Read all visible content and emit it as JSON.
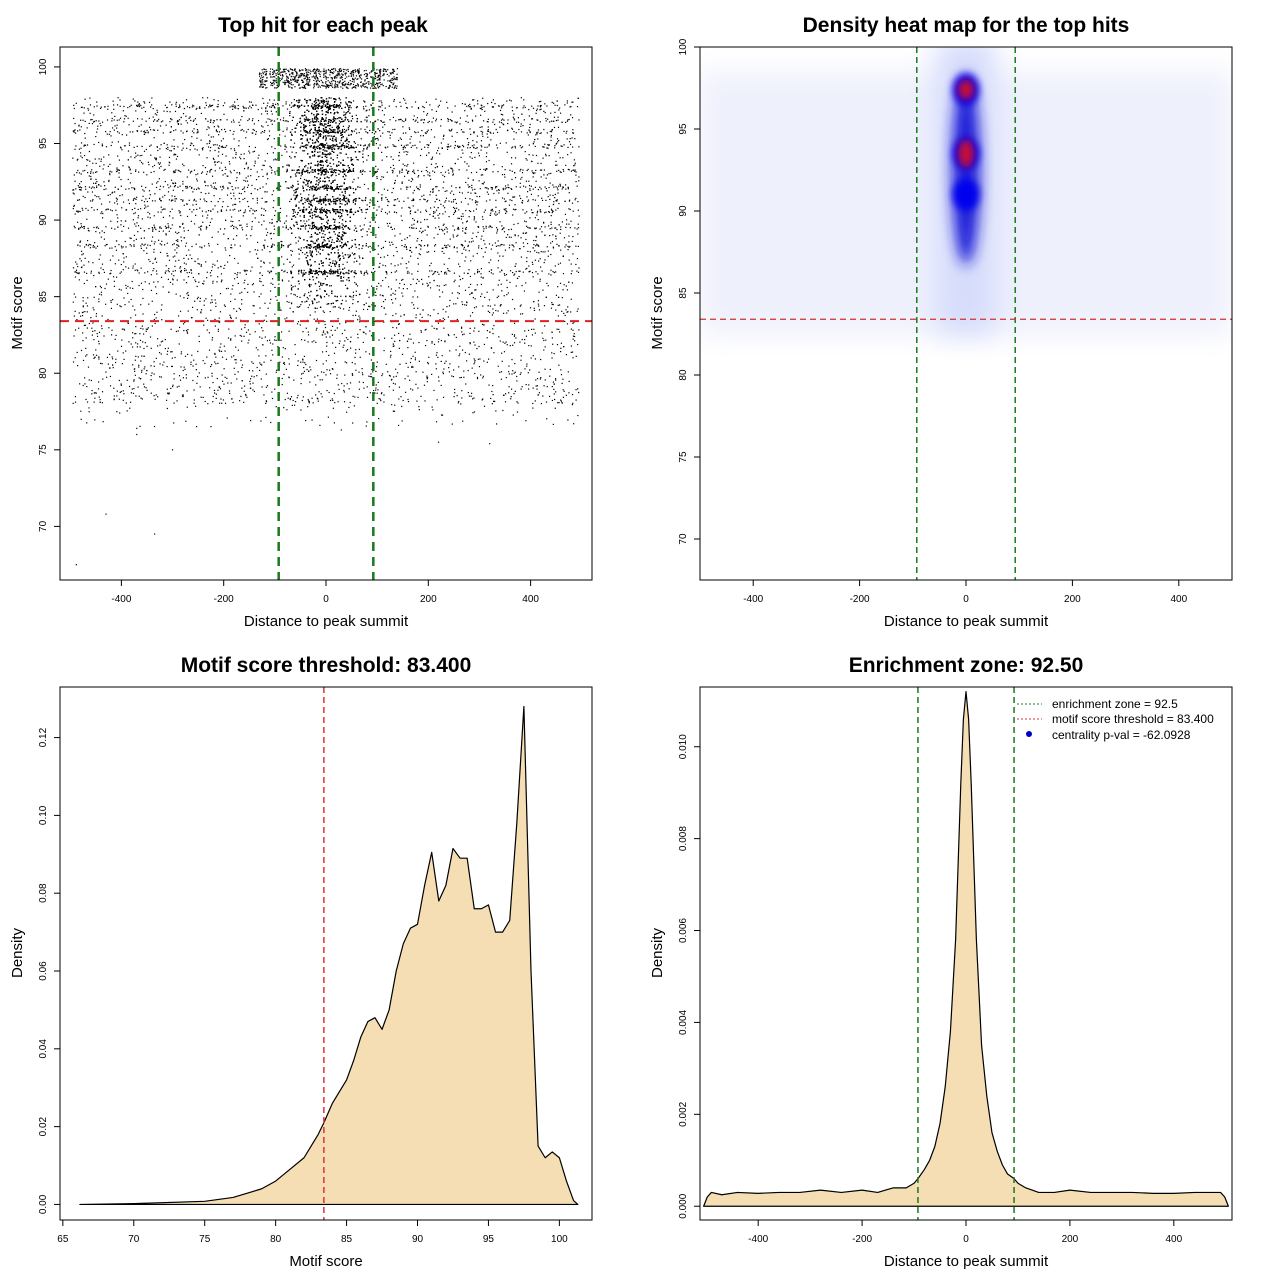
{
  "chart_data": [
    {
      "id": "scatter",
      "type": "scatter",
      "title": "Top hit for each peak",
      "xlabel": "Distance to peak summit",
      "ylabel": "Motif score",
      "xlim": [
        -520,
        520
      ],
      "ylim": [
        66.5,
        101.3
      ],
      "xticks": [
        "-400",
        "-200",
        "0",
        "200",
        "400"
      ],
      "yticks": [
        "70",
        "75",
        "80",
        "85",
        "90",
        "95",
        "100"
      ],
      "threshold": 83.4,
      "zone": [
        -92.5,
        92.5
      ],
      "zone_color": "#1a7a1a",
      "threshold_color": "#dd2222",
      "point_color": "#000000",
      "outlier_points": [
        [
          -488,
          67.5
        ],
        [
          -430,
          70.8
        ],
        [
          -370,
          76.0
        ],
        [
          -370,
          76.4
        ],
        [
          -335,
          69.5
        ],
        [
          -300,
          75.0
        ],
        [
          220,
          75.5
        ],
        [
          320,
          75.4
        ],
        [
          30,
          76.3
        ]
      ]
    },
    {
      "id": "heatmap",
      "type": "heatmap",
      "title": "Density heat map for the top hits",
      "xlabel": "Distance to peak summit",
      "ylabel": "Motif score",
      "xlim": [
        -500,
        500
      ],
      "ylim": [
        67.5,
        100
      ],
      "xticks": [
        "-400",
        "-200",
        "0",
        "200",
        "400"
      ],
      "yticks": [
        "70",
        "75",
        "80",
        "85",
        "90",
        "95",
        "100"
      ],
      "threshold": 83.4,
      "zone": [
        -92.5,
        92.5
      ],
      "zone_color": "#1a7a1a",
      "threshold_color": "#cc3333",
      "hotspots": [
        {
          "x": 0,
          "y": 97.4,
          "level": "red"
        },
        {
          "x": 0,
          "y": 93.5,
          "level": "red"
        },
        {
          "x": 0,
          "y": 91.0,
          "level": "blue"
        }
      ]
    },
    {
      "id": "score_density",
      "type": "area",
      "title": "Motif score threshold: 83.400",
      "xlabel": "Motif score",
      "ylabel": "Density",
      "xlim": [
        64.8,
        102.3
      ],
      "ylim": [
        -0.004,
        0.133
      ],
      "xticks": [
        "65",
        "70",
        "75",
        "80",
        "85",
        "90",
        "95",
        "100"
      ],
      "yticks": [
        "0.00",
        "0.02",
        "0.04",
        "0.06",
        "0.08",
        "0.10",
        "0.12"
      ],
      "threshold": 83.4,
      "threshold_color": "#dd3333",
      "fill_color": "#f5deb3",
      "x": [
        66.2,
        70,
        75,
        77,
        79,
        80,
        81,
        82,
        83,
        83.4,
        84,
        84.5,
        85,
        85.5,
        86,
        86.5,
        87,
        87.5,
        88,
        88.5,
        89,
        89.5,
        90,
        90.5,
        91,
        91.5,
        92,
        92.5,
        93,
        93.5,
        94,
        94.5,
        95,
        95.5,
        96,
        96.5,
        97,
        97.5,
        98,
        98.5,
        99,
        99.5,
        100,
        100.5,
        101,
        101.3
      ],
      "values": [
        0,
        0.0002,
        0.0008,
        0.0018,
        0.004,
        0.006,
        0.009,
        0.012,
        0.018,
        0.021,
        0.026,
        0.029,
        0.032,
        0.037,
        0.043,
        0.047,
        0.048,
        0.045,
        0.05,
        0.06,
        0.067,
        0.071,
        0.072,
        0.082,
        0.0905,
        0.078,
        0.082,
        0.0915,
        0.089,
        0.089,
        0.076,
        0.076,
        0.077,
        0.07,
        0.07,
        0.073,
        0.098,
        0.128,
        0.06,
        0.015,
        0.012,
        0.0135,
        0.012,
        0.006,
        0.001,
        0
      ]
    },
    {
      "id": "position_density",
      "type": "area",
      "title": "Enrichment zone: 92.50",
      "xlabel": "Distance to peak summit",
      "ylabel": "Density",
      "xlim": [
        -512,
        512
      ],
      "ylim": [
        -0.0003,
        0.0113
      ],
      "xticks": [
        "-400",
        "-200",
        "0",
        "200",
        "400"
      ],
      "yticks": [
        "0.000",
        "0.002",
        "0.004",
        "0.006",
        "0.008",
        "0.010"
      ],
      "zone": [
        -92.5,
        92.5
      ],
      "zone_color": "#1a7a1a",
      "fill_color": "#f5deb3",
      "x": [
        -505,
        -498,
        -490,
        -470,
        -440,
        -400,
        -360,
        -320,
        -280,
        -240,
        -200,
        -170,
        -140,
        -115,
        -100,
        -92.5,
        -80,
        -70,
        -60,
        -50,
        -40,
        -30,
        -20,
        -10,
        -5,
        0,
        5,
        10,
        20,
        30,
        40,
        50,
        60,
        70,
        80,
        92.5,
        100,
        115,
        140,
        170,
        200,
        240,
        280,
        320,
        360,
        400,
        440,
        470,
        490,
        498,
        505
      ],
      "values": [
        0,
        0.0002,
        0.0003,
        0.00025,
        0.0003,
        0.00028,
        0.0003,
        0.0003,
        0.00035,
        0.0003,
        0.00035,
        0.0003,
        0.0004,
        0.0004,
        0.0005,
        0.0006,
        0.0008,
        0.001,
        0.0013,
        0.0018,
        0.0026,
        0.0038,
        0.0058,
        0.0092,
        0.0106,
        0.0112,
        0.0106,
        0.0092,
        0.0058,
        0.0035,
        0.0024,
        0.0016,
        0.0012,
        0.0009,
        0.0007,
        0.0006,
        0.0005,
        0.0004,
        0.0003,
        0.0003,
        0.00035,
        0.0003,
        0.0003,
        0.0003,
        0.00028,
        0.00028,
        0.0003,
        0.0003,
        0.0003,
        0.0002,
        0
      ],
      "legend": [
        {
          "label": "enrichment zone = 92.5",
          "color": "#1a7a1a",
          "style": "dotted-line"
        },
        {
          "label": "motif score threshold = 83.400",
          "color": "#dd3333",
          "style": "dotted-line"
        },
        {
          "label": "centrality p-val = -62.0928",
          "color": "#0000cc",
          "style": "point"
        }
      ]
    }
  ]
}
